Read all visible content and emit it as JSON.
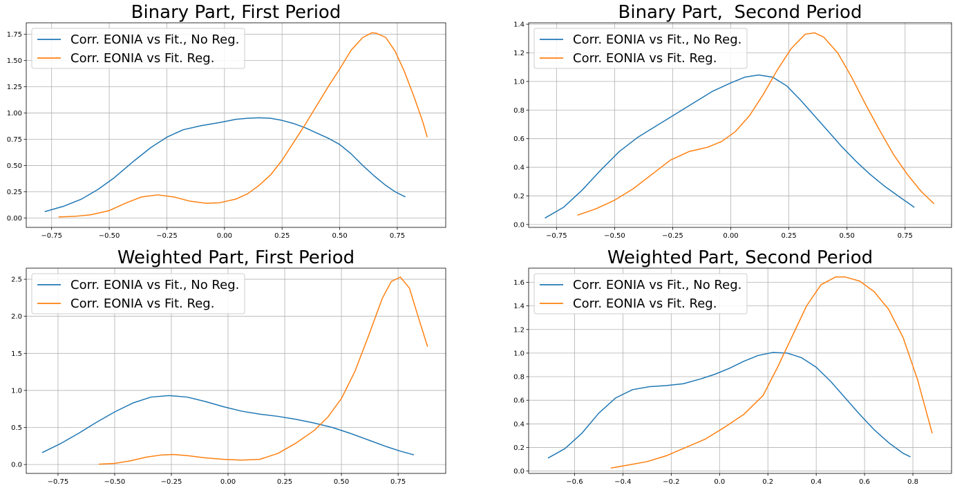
{
  "chart_data": [
    {
      "type": "line",
      "title": "Binary Part, First Period",
      "xlabel": "",
      "ylabel": "",
      "xlim": [
        -0.86,
        0.96
      ],
      "ylim": [
        -0.09,
        1.86
      ],
      "xticks": [
        -0.75,
        -0.5,
        -0.25,
        0.0,
        0.25,
        0.5,
        0.75
      ],
      "xtick_labels": [
        "−0.75",
        "−0.50",
        "−0.25",
        "0.00",
        "0.25",
        "0.50",
        "0.75"
      ],
      "yticks": [
        0.0,
        0.25,
        0.5,
        0.75,
        1.0,
        1.25,
        1.5,
        1.75
      ],
      "ytick_labels": [
        "0.00",
        "0.25",
        "0.50",
        "0.75",
        "1.00",
        "1.25",
        "1.50",
        "1.75"
      ],
      "grid": true,
      "legend_position": "upper-left",
      "series": [
        {
          "name": "Corr. EONIA vs Fit., No Reg.",
          "color": "#1f77b4",
          "x": [
            -0.78,
            -0.7,
            -0.62,
            -0.55,
            -0.48,
            -0.4,
            -0.32,
            -0.25,
            -0.18,
            -0.1,
            -0.02,
            0.05,
            0.1,
            0.15,
            0.2,
            0.25,
            0.3,
            0.35,
            0.4,
            0.45,
            0.5,
            0.55,
            0.6,
            0.65,
            0.7,
            0.74,
            0.785
          ],
          "y": [
            0.06,
            0.11,
            0.18,
            0.27,
            0.38,
            0.53,
            0.67,
            0.77,
            0.84,
            0.88,
            0.91,
            0.94,
            0.95,
            0.955,
            0.95,
            0.93,
            0.9,
            0.86,
            0.81,
            0.76,
            0.7,
            0.61,
            0.5,
            0.4,
            0.31,
            0.25,
            0.2
          ]
        },
        {
          "name": "Corr. EONIA vs Fit. Reg.",
          "color": "#ff7f0e",
          "x": [
            -0.72,
            -0.65,
            -0.58,
            -0.5,
            -0.43,
            -0.36,
            -0.29,
            -0.22,
            -0.15,
            -0.08,
            -0.02,
            0.05,
            0.1,
            0.15,
            0.2,
            0.25,
            0.3,
            0.35,
            0.4,
            0.45,
            0.5,
            0.55,
            0.6,
            0.64,
            0.66,
            0.7,
            0.74,
            0.78,
            0.82,
            0.86,
            0.88
          ],
          "y": [
            0.01,
            0.015,
            0.03,
            0.07,
            0.14,
            0.2,
            0.22,
            0.2,
            0.16,
            0.14,
            0.145,
            0.18,
            0.23,
            0.31,
            0.41,
            0.55,
            0.72,
            0.89,
            1.07,
            1.25,
            1.42,
            1.6,
            1.72,
            1.765,
            1.76,
            1.72,
            1.59,
            1.4,
            1.17,
            0.92,
            0.77
          ]
        }
      ]
    },
    {
      "type": "line",
      "title": "Binary Part,  Second Period",
      "xlabel": "",
      "ylabel": "",
      "xlim": [
        -0.87,
        0.95
      ],
      "ylim": [
        -0.02,
        1.41
      ],
      "xticks": [
        -0.75,
        -0.5,
        -0.25,
        0.0,
        0.25,
        0.5,
        0.75
      ],
      "xtick_labels": [
        "−0.75",
        "−0.50",
        "−0.25",
        "0.00",
        "0.25",
        "0.50",
        "0.75"
      ],
      "yticks": [
        0.0,
        0.2,
        0.4,
        0.6,
        0.8,
        1.0,
        1.2,
        1.4
      ],
      "ytick_labels": [
        "0.0",
        "0.2",
        "0.4",
        "0.6",
        "0.8",
        "1.0",
        "1.2",
        "1.4"
      ],
      "grid": true,
      "legend_position": "upper-left",
      "series": [
        {
          "name": "Corr. EONIA vs Fit., No Reg.",
          "color": "#1f77b4",
          "x": [
            -0.8,
            -0.72,
            -0.64,
            -0.56,
            -0.48,
            -0.4,
            -0.32,
            -0.24,
            -0.16,
            -0.08,
            0.0,
            0.06,
            0.12,
            0.18,
            0.24,
            0.3,
            0.36,
            0.42,
            0.48,
            0.54,
            0.6,
            0.66,
            0.72,
            0.79
          ],
          "y": [
            0.045,
            0.12,
            0.24,
            0.38,
            0.51,
            0.61,
            0.69,
            0.77,
            0.85,
            0.93,
            0.99,
            1.03,
            1.045,
            1.03,
            0.97,
            0.87,
            0.76,
            0.65,
            0.54,
            0.44,
            0.35,
            0.27,
            0.2,
            0.12
          ]
        },
        {
          "name": "Corr. EONIA vs Fit. Reg.",
          "color": "#ff7f0e",
          "x": [
            -0.66,
            -0.58,
            -0.5,
            -0.42,
            -0.34,
            -0.26,
            -0.18,
            -0.1,
            -0.04,
            0.02,
            0.08,
            0.14,
            0.2,
            0.26,
            0.32,
            0.36,
            0.4,
            0.46,
            0.52,
            0.58,
            0.64,
            0.7,
            0.76,
            0.82,
            0.875
          ],
          "y": [
            0.065,
            0.11,
            0.17,
            0.25,
            0.35,
            0.45,
            0.51,
            0.54,
            0.58,
            0.65,
            0.76,
            0.91,
            1.08,
            1.23,
            1.33,
            1.34,
            1.31,
            1.2,
            1.03,
            0.84,
            0.66,
            0.49,
            0.35,
            0.23,
            0.145
          ]
        }
      ]
    },
    {
      "type": "line",
      "title": "Weighted Part, First Period",
      "xlabel": "",
      "ylabel": "",
      "xlim": [
        -0.89,
        0.96
      ],
      "ylim": [
        -0.12,
        2.65
      ],
      "xticks": [
        -0.75,
        -0.5,
        -0.25,
        0.0,
        0.25,
        0.5,
        0.75
      ],
      "xtick_labels": [
        "−0.75",
        "−0.50",
        "−0.25",
        "0.00",
        "0.25",
        "0.50",
        "0.75"
      ],
      "yticks": [
        0.0,
        0.5,
        1.0,
        1.5,
        2.0,
        2.5
      ],
      "ytick_labels": [
        "0.0",
        "0.5",
        "1.0",
        "1.5",
        "2.0",
        "2.5"
      ],
      "grid": true,
      "legend_position": "upper-left",
      "series": [
        {
          "name": "Corr. EONIA vs Fit., No Reg.",
          "color": "#1f77b4",
          "x": [
            -0.82,
            -0.74,
            -0.66,
            -0.58,
            -0.5,
            -0.42,
            -0.34,
            -0.26,
            -0.18,
            -0.1,
            -0.02,
            0.06,
            0.14,
            0.22,
            0.3,
            0.38,
            0.46,
            0.54,
            0.62,
            0.7,
            0.76,
            0.82
          ],
          "y": [
            0.16,
            0.28,
            0.42,
            0.57,
            0.71,
            0.83,
            0.91,
            0.93,
            0.91,
            0.85,
            0.78,
            0.72,
            0.68,
            0.65,
            0.61,
            0.56,
            0.5,
            0.42,
            0.33,
            0.24,
            0.18,
            0.13
          ]
        },
        {
          "name": "Corr. EONIA vs Fit. Reg.",
          "color": "#ff7f0e",
          "x": [
            -0.57,
            -0.5,
            -0.43,
            -0.36,
            -0.29,
            -0.24,
            -0.18,
            -0.1,
            -0.02,
            0.06,
            0.14,
            0.22,
            0.3,
            0.38,
            0.44,
            0.5,
            0.56,
            0.62,
            0.68,
            0.72,
            0.76,
            0.8,
            0.84,
            0.88
          ],
          "y": [
            0.005,
            0.015,
            0.05,
            0.1,
            0.13,
            0.135,
            0.12,
            0.09,
            0.07,
            0.06,
            0.07,
            0.15,
            0.29,
            0.46,
            0.64,
            0.89,
            1.26,
            1.74,
            2.24,
            2.47,
            2.53,
            2.38,
            1.98,
            1.59
          ]
        }
      ]
    },
    {
      "type": "line",
      "title": "Weighted Part, Second Period",
      "xlabel": "",
      "ylabel": "",
      "xlim": [
        -0.79,
        0.96
      ],
      "ylim": [
        -0.02,
        1.72
      ],
      "xticks": [
        -0.6,
        -0.4,
        -0.2,
        0.0,
        0.2,
        0.4,
        0.6,
        0.8
      ],
      "xtick_labels": [
        "−0.6",
        "−0.4",
        "−0.2",
        "0.0",
        "0.2",
        "0.4",
        "0.6",
        "0.8"
      ],
      "yticks": [
        0.0,
        0.2,
        0.4,
        0.6,
        0.8,
        1.0,
        1.2,
        1.4,
        1.6
      ],
      "ytick_labels": [
        "0.0",
        "0.2",
        "0.4",
        "0.6",
        "0.8",
        "1.0",
        "1.2",
        "1.4",
        "1.6"
      ],
      "grid": true,
      "legend_position": "upper-left",
      "series": [
        {
          "name": "Corr. EONIA vs Fit., No Reg.",
          "color": "#1f77b4",
          "x": [
            -0.71,
            -0.64,
            -0.57,
            -0.5,
            -0.43,
            -0.36,
            -0.29,
            -0.22,
            -0.15,
            -0.08,
            -0.02,
            0.04,
            0.1,
            0.16,
            0.22,
            0.28,
            0.34,
            0.4,
            0.46,
            0.52,
            0.58,
            0.64,
            0.7,
            0.76,
            0.79
          ],
          "y": [
            0.11,
            0.19,
            0.32,
            0.49,
            0.62,
            0.69,
            0.715,
            0.725,
            0.74,
            0.78,
            0.82,
            0.87,
            0.93,
            0.98,
            1.005,
            1.0,
            0.96,
            0.88,
            0.76,
            0.62,
            0.48,
            0.35,
            0.24,
            0.15,
            0.12
          ]
        },
        {
          "name": "Corr. EONIA vs Fit. Reg.",
          "color": "#ff7f0e",
          "x": [
            -0.45,
            -0.38,
            -0.3,
            -0.22,
            -0.14,
            -0.06,
            0.02,
            0.1,
            0.18,
            0.24,
            0.3,
            0.36,
            0.42,
            0.48,
            0.52,
            0.58,
            0.64,
            0.7,
            0.76,
            0.82,
            0.88
          ],
          "y": [
            0.025,
            0.05,
            0.08,
            0.13,
            0.2,
            0.27,
            0.37,
            0.48,
            0.64,
            0.88,
            1.14,
            1.4,
            1.58,
            1.645,
            1.645,
            1.61,
            1.52,
            1.37,
            1.13,
            0.77,
            0.32
          ]
        }
      ]
    }
  ]
}
